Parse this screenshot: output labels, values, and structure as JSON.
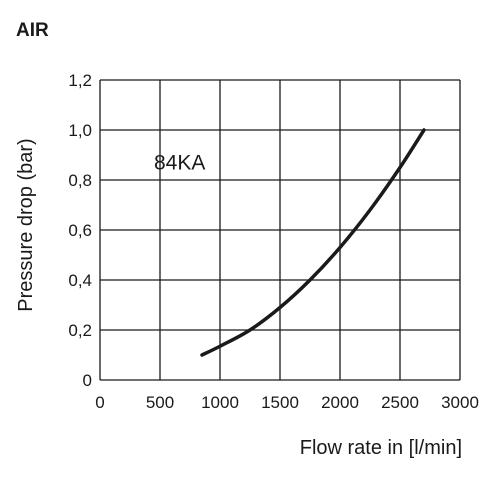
{
  "chart_data": {
    "type": "line",
    "title": "AIR",
    "xlabel": "Flow rate in [l/min]",
    "ylabel": "Pressure drop (bar)",
    "xlim": [
      0,
      3000
    ],
    "ylim": [
      0,
      1.2
    ],
    "x_ticks": [
      "0",
      "500",
      "1000",
      "1500",
      "2000",
      "2500",
      "3000"
    ],
    "y_ticks": [
      "0",
      "0,2",
      "0,4",
      "0,6",
      "0,8",
      "1,0",
      "1,2"
    ],
    "grid": true,
    "annotation": "84KA",
    "series": [
      {
        "name": "84KA",
        "color": "#1a1a1a",
        "x": [
          850,
          1000,
          1250,
          1500,
          1750,
          2000,
          2250,
          2500,
          2700
        ],
        "y": [
          0.1,
          0.135,
          0.2,
          0.29,
          0.4,
          0.53,
          0.68,
          0.85,
          1.0
        ]
      }
    ]
  }
}
